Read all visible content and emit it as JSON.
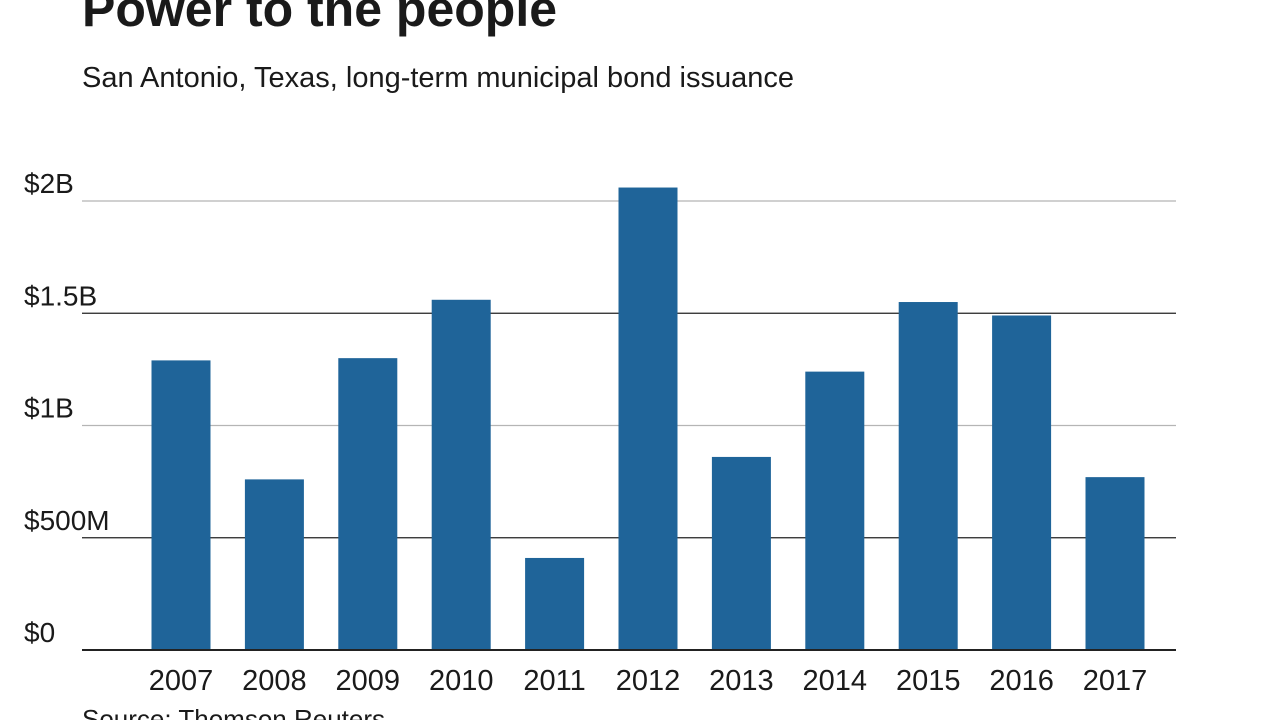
{
  "title": "Power to the people",
  "subtitle": "San Antonio, Texas, long-term municipal bond issuance",
  "source": "Source: Thomson Reuters",
  "colors": {
    "bar": "#1f6499",
    "gridline_light": "#b5b5b5",
    "gridline_dark": "#222222",
    "text": "#1a1a1a"
  },
  "chart_data": {
    "type": "bar",
    "categories": [
      "2007",
      "2008",
      "2009",
      "2010",
      "2011",
      "2012",
      "2013",
      "2014",
      "2015",
      "2016",
      "2017"
    ],
    "values": [
      1.29,
      0.76,
      1.3,
      1.56,
      0.41,
      2.06,
      0.86,
      1.24,
      1.55,
      1.49,
      0.77
    ],
    "unit": "billions of dollars",
    "ylim": [
      0,
      2
    ],
    "yticks": [
      0,
      0.5,
      1,
      1.5,
      2
    ],
    "ytick_labels": [
      "$0",
      "$500M",
      "$1B",
      "$1.5B",
      "$2B"
    ],
    "xlabel": "",
    "ylabel": "",
    "grid": true,
    "legend": false
  }
}
